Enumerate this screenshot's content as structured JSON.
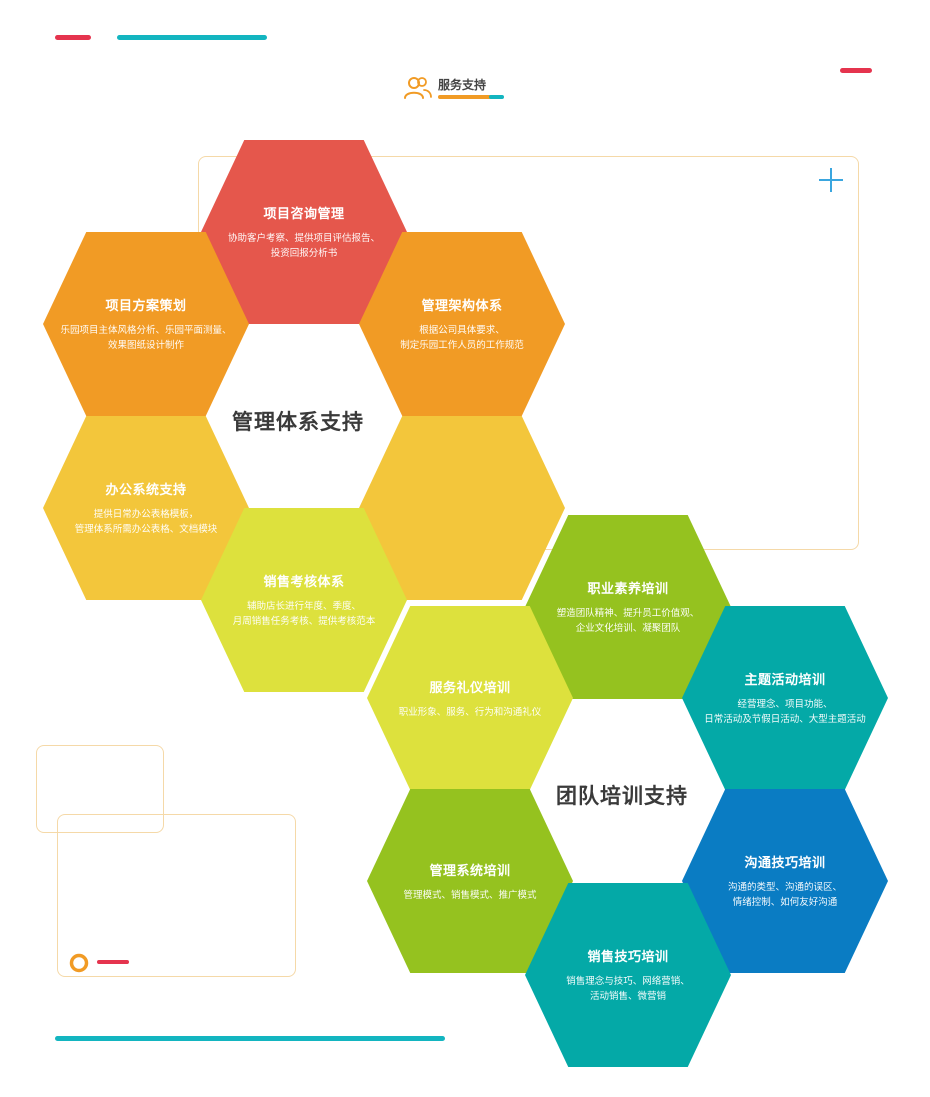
{
  "header": {
    "label": "服务支持"
  },
  "sections": {
    "management": "管理体系支持",
    "training": "团队培训支持"
  },
  "hexes": [
    {
      "title": "项目咨询管理",
      "desc": [
        "协助客户考察、提供项目评估报告、",
        "投资回报分析书"
      ],
      "color": "#e5574c"
    },
    {
      "title": "项目方案策划",
      "desc": [
        "乐园项目主体风格分析、乐园平面测量、",
        "效果图纸设计制作"
      ],
      "color": "#f19b25"
    },
    {
      "title": "管理架构体系",
      "desc": [
        "根据公司具体要求、",
        "制定乐园工作人员的工作规范"
      ],
      "color": "#f19b25"
    },
    {
      "title": "",
      "desc": [],
      "color": "#f3c63b"
    },
    {
      "title": "办公系统支持",
      "desc": [
        "提供日常办公表格模板，",
        "管理体系所需办公表格、文档模块"
      ],
      "color": "#f3c63b"
    },
    {
      "title": "销售考核体系",
      "desc": [
        "辅助店长进行年度、季度、",
        "月周销售任务考核、提供考核范本"
      ],
      "color": "#dde13d"
    },
    {
      "title": "职业素养培训",
      "desc": [
        "塑造团队精神、提升员工价值观、",
        "企业文化培训、凝聚团队"
      ],
      "color": "#95c21f"
    },
    {
      "title": "服务礼仪培训",
      "desc": [
        "职业形象、服务、行为和沟通礼仪"
      ],
      "color": "#dde13d"
    },
    {
      "title": "主题活动培训",
      "desc": [
        "经营理念、项目功能、",
        "日常活动及节假日活动、大型主题活动"
      ],
      "color": "#04a9a7"
    },
    {
      "title": "管理系统培训",
      "desc": [
        "管理模式、销售模式、推广模式"
      ],
      "color": "#95c21f"
    },
    {
      "title": "沟通技巧培训",
      "desc": [
        "沟通的类型、沟通的误区、",
        "情绪控制、如何友好沟通"
      ],
      "color": "#0a7cc3"
    },
    {
      "title": "销售技巧培训",
      "desc": [
        "销售理念与技巧、网络营销、",
        "活动销售、微营销"
      ],
      "color": "#04a9a7"
    }
  ]
}
